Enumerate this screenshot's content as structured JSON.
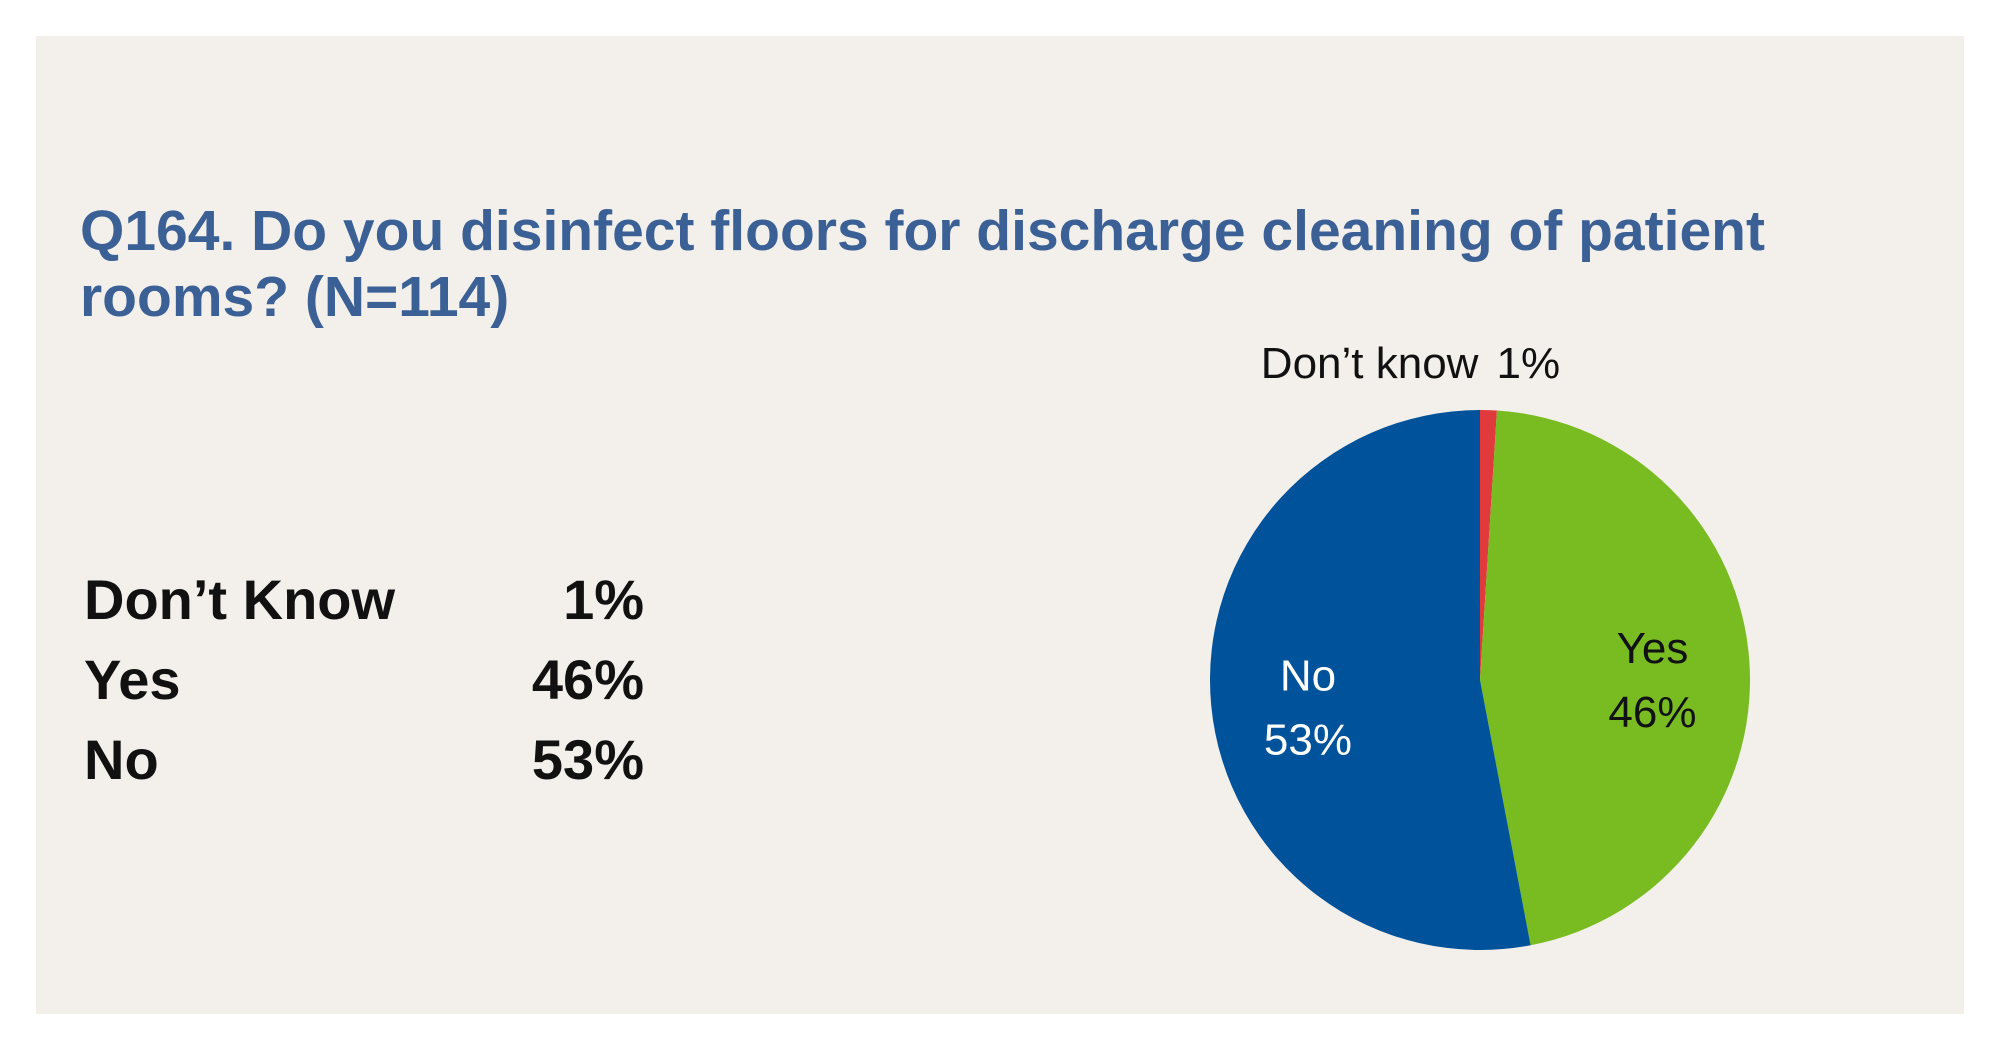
{
  "title": "Q164. Do you disinfect floors for discharge cleaning of patient rooms? (N=114)",
  "table": {
    "rows": [
      {
        "label": "Don’t Know",
        "value": "1%"
      },
      {
        "label": "Yes",
        "value": "46%"
      },
      {
        "label": "No",
        "value": "53%"
      }
    ]
  },
  "chart_data": {
    "type": "pie",
    "title": "Q164. Do you disinfect floors for discharge cleaning of patient rooms? (N=114)",
    "categories": [
      "Don’t know",
      "Yes",
      "No"
    ],
    "values": [
      1,
      46,
      53
    ],
    "slice_labels": [
      {
        "name": "Don’t know",
        "percent": "1%"
      },
      {
        "name": "Yes",
        "percent": "46%"
      },
      {
        "name": "No",
        "percent": "53%"
      }
    ],
    "colors": [
      "#e03a3c",
      "#78bc22",
      "#00529b"
    ],
    "label_colors": [
      "#111111",
      "#111111",
      "#ffffff"
    ],
    "legend": "none"
  },
  "colors": {
    "background": "#f3efea",
    "title": "#3a6096",
    "text": "#111111"
  }
}
